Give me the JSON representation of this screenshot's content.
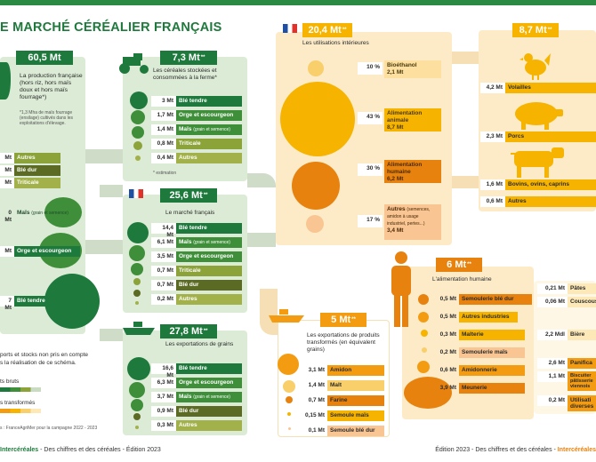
{
  "title": "E MARCHÉ CÉRÉALIER FRANÇAIS",
  "production": {
    "value": "60,5 Mt",
    "desc": "La production française (hors riz, hors maïs doux et hors maïs fourrage*)",
    "note": "*1,3 Mha de maïs fourrage (ensilage) cultivés dans les exploitations d'élevage.",
    "rows": [
      {
        "value": "Mt",
        "label": "Autres"
      },
      {
        "value": "Mt",
        "label": "Blé dur"
      },
      {
        "value": "Mt",
        "label": "Triticale"
      }
    ],
    "circles": [
      {
        "value": "0 Mt",
        "label": "Maïs",
        "small": "(grain et semence)"
      },
      {
        "value": "Mt",
        "label": "Orge et escourgeon"
      },
      {
        "value": "7 Mt",
        "label": "Blé tendre"
      }
    ],
    "footnote1": "ports et stocks non pris en compte",
    "footnote2": "s la réalisation de ce schéma.",
    "legend_raw": "ts bruts",
    "legend_processed": "s transformés",
    "source": "s : FranceAgriMer pour la campagne 2022 - 2023"
  },
  "stocks": {
    "value": "7,3 Mt",
    "mark": "**",
    "desc": "Les céréales stockées et consommées à la ferme*",
    "rows": [
      {
        "value": "3 Mt",
        "label": "Blé tendre",
        "small": ""
      },
      {
        "value": "1,7 Mt",
        "label": "Orge et escourgeon",
        "small": ""
      },
      {
        "value": "1,4 Mt",
        "label": "Maïs",
        "small": "(grain et semence)"
      },
      {
        "value": "0,8 Mt",
        "label": "Triticale",
        "small": ""
      },
      {
        "value": "0,4 Mt",
        "label": "Autres",
        "small": ""
      }
    ],
    "note": "* estimation"
  },
  "market": {
    "value": "25,6 Mt",
    "mark": "**",
    "desc": "Le marché français",
    "rows": [
      {
        "value": "14,4 Mt",
        "label": "Blé tendre",
        "small": ""
      },
      {
        "value": "6,1 Mt",
        "label": "Maïs",
        "small": "(grain et semence)"
      },
      {
        "value": "3,5 Mt",
        "label": "Orge et escourgeon",
        "small": ""
      },
      {
        "value": "0,7 Mt",
        "label": "Triticale",
        "small": ""
      },
      {
        "value": "0,7 Mt",
        "label": "Blé dur",
        "small": ""
      },
      {
        "value": "0,2 Mt",
        "label": "Autres",
        "small": ""
      }
    ]
  },
  "exports_grain": {
    "value": "27,8 Mt",
    "mark": "**",
    "desc": "Les exportations de grains",
    "rows": [
      {
        "value": "16,6 Mt",
        "label": "Blé tendre",
        "small": ""
      },
      {
        "value": "6,3 Mt",
        "label": "Orge et escourgeon",
        "small": ""
      },
      {
        "value": "3,7 Mt",
        "label": "Maïs",
        "small": "(grain et semence)"
      },
      {
        "value": "0,9 Mt",
        "label": "Blé dur",
        "small": ""
      },
      {
        "value": "0,3 Mt",
        "label": "Autres",
        "small": ""
      }
    ]
  },
  "domestic": {
    "value": "20,4 Mt",
    "mark": "**",
    "desc": "Les utilisations intérieures",
    "rows": [
      {
        "pct": "10 %",
        "label": "Bioéthanol",
        "sub": "2,1 Mt"
      },
      {
        "pct": "43 %",
        "label": "Alimentation animale",
        "sub": "8,7 Mt"
      },
      {
        "pct": "30 %",
        "label": "Alimentation humaine",
        "sub": "6,2 Mt"
      },
      {
        "pct": "17 %",
        "label": "Autres",
        "small": "(semences, amidon à usage industriel, pertes...)",
        "sub": "3,4 Mt"
      }
    ]
  },
  "animal": {
    "value": "8,7 Mt",
    "mark": "**",
    "rows": [
      {
        "value": "4,2 Mt",
        "label": "Volailles"
      },
      {
        "value": "2,3 Mt",
        "label": "Porcs"
      },
      {
        "value": "1,6 Mt",
        "label": "Bovins, ovins, caprins"
      },
      {
        "value": "0,6 Mt",
        "label": "Autres"
      }
    ]
  },
  "human": {
    "value": "6 Mt",
    "mark": "**",
    "desc": "L'alimentation humaine",
    "rows": [
      {
        "value": "0,5 Mt",
        "label": "Semoulerie blé dur"
      },
      {
        "value": "0,5 Mt",
        "label": "Autres industries"
      },
      {
        "value": "0,3 Mt",
        "label": "Malterie"
      },
      {
        "value": "0,2 Mt",
        "label": "Semoulerie maïs"
      },
      {
        "value": "0,6 Mt",
        "label": "Amidonnerie"
      },
      {
        "value": "3,9 Mt",
        "label": "Meunerie"
      }
    ],
    "products": [
      {
        "value": "0,21 Mt",
        "label": "Pâtes"
      },
      {
        "value": "0,06 Mt",
        "label": "Couscous"
      },
      {
        "value": "2,2 Mdl",
        "label": "Bière"
      },
      {
        "value": "2,6 Mt",
        "label": "Panifica"
      },
      {
        "value": "1,1 Mt",
        "label": "Biscuiter pâtisserie viennois"
      },
      {
        "value": "0,2 Mt",
        "label": "Utilisati diverses"
      }
    ]
  },
  "exports_processed": {
    "value": "5 Mt",
    "mark": "**",
    "desc": "Les exportations de produits transformés (en équivalent grains)",
    "rows": [
      {
        "value": "3,1 Mt",
        "label": "Amidon"
      },
      {
        "value": "1,4 Mt",
        "label": "Malt"
      },
      {
        "value": "0,7 Mt",
        "label": "Farine"
      },
      {
        "value": "0,15 Mt",
        "label": "Semoule maïs"
      },
      {
        "value": "0,1 Mt",
        "label": "Semoule blé dur"
      }
    ]
  },
  "footer": {
    "left_brand": "Intercéréales",
    "left_text": " - Des chiffres et des céréales - Édition 2023",
    "right_text": "Édition 2023 - Des chiffres et des céréales - ",
    "right_brand": "Intercéréales"
  },
  "colors": {
    "green_dark": "#1e7a3c",
    "orange": "#f39c12",
    "yellow": "#f6b400",
    "cream": "#fdebc8"
  }
}
